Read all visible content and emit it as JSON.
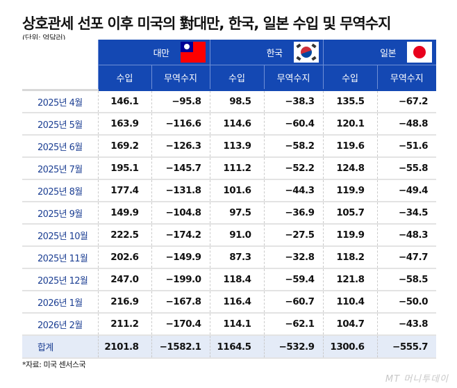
{
  "title": "상호관세 선포 이후 미국의 對대만, 한국, 일본 수입 및 무역수지",
  "unit": "(단위: 억달러)",
  "countries": [
    {
      "name": "대만",
      "flag": "taiwan-flag"
    },
    {
      "name": "한국",
      "flag": "korea-flag"
    },
    {
      "name": "일본",
      "flag": "japan-flag"
    }
  ],
  "subheaders": {
    "import": "수입",
    "balance": "무역수지"
  },
  "rows": [
    {
      "month": "2025년 4월",
      "values": [
        "146.1",
        "−95.8",
        "98.5",
        "−38.3",
        "135.5",
        "−67.2"
      ]
    },
    {
      "month": "2025년 5월",
      "values": [
        "163.9",
        "−116.6",
        "114.6",
        "−60.4",
        "120.1",
        "−48.8"
      ]
    },
    {
      "month": "2025년 6월",
      "values": [
        "169.2",
        "−126.3",
        "113.9",
        "−58.2",
        "119.6",
        "−51.6"
      ]
    },
    {
      "month": "2025년 7월",
      "values": [
        "195.1",
        "−145.7",
        "111.2",
        "−52.2",
        "124.8",
        "−55.8"
      ]
    },
    {
      "month": "2025년 8월",
      "values": [
        "177.4",
        "−131.8",
        "101.6",
        "−44.3",
        "119.9",
        "−49.4"
      ]
    },
    {
      "month": "2025년 9월",
      "values": [
        "149.9",
        "−104.8",
        "97.5",
        "−36.9",
        "105.7",
        "−34.5"
      ]
    },
    {
      "month": "2025년 10월",
      "values": [
        "222.5",
        "−174.2",
        "91.0",
        "−27.5",
        "119.9",
        "−48.3"
      ]
    },
    {
      "month": "2025년 11월",
      "values": [
        "202.6",
        "−149.9",
        "87.3",
        "−32.8",
        "118.2",
        "−47.7"
      ]
    },
    {
      "month": "2025년 12월",
      "values": [
        "247.0",
        "−199.0",
        "118.4",
        "−59.4",
        "121.8",
        "−58.5"
      ]
    },
    {
      "month": "2026년 1월",
      "values": [
        "216.9",
        "−167.8",
        "116.4",
        "−60.7",
        "110.4",
        "−50.0"
      ]
    },
    {
      "month": "2026년 2월",
      "values": [
        "211.2",
        "−170.4",
        "114.1",
        "−62.1",
        "104.7",
        "−43.8"
      ]
    }
  ],
  "total": {
    "month": "합계",
    "values": [
      "2101.8",
      "−1582.1",
      "1164.5",
      "−532.9",
      "1300.6",
      "−555.7"
    ]
  },
  "source": "*자료: 미국 센서스국",
  "logo": "MT 머니투데이",
  "colors": {
    "header_bg": "#1448b3",
    "month_text": "#1c3f93",
    "total_bg": "#e4ebf7"
  },
  "chart_data": {
    "type": "table",
    "title": "상호관세 선포 이후 미국의 對대만, 한국, 일본 수입 및 무역수지",
    "unit": "억달러",
    "categories": [
      "2025년 4월",
      "2025년 5월",
      "2025년 6월",
      "2025년 7월",
      "2025년 8월",
      "2025년 9월",
      "2025년 10월",
      "2025년 11월",
      "2025년 12월",
      "2026년 1월",
      "2026년 2월"
    ],
    "series": [
      {
        "name": "대만 수입",
        "values": [
          146.1,
          163.9,
          169.2,
          195.1,
          177.4,
          149.9,
          222.5,
          202.6,
          247.0,
          216.9,
          211.2
        ],
        "total": 2101.8
      },
      {
        "name": "대만 무역수지",
        "values": [
          -95.8,
          -116.6,
          -126.3,
          -145.7,
          -131.8,
          -104.8,
          -174.2,
          -149.9,
          -199.0,
          -167.8,
          -170.4
        ],
        "total": -1582.1
      },
      {
        "name": "한국 수입",
        "values": [
          98.5,
          114.6,
          113.9,
          111.2,
          101.6,
          97.5,
          91.0,
          87.3,
          118.4,
          116.4,
          114.1
        ],
        "total": 1164.5
      },
      {
        "name": "한국 무역수지",
        "values": [
          -38.3,
          -60.4,
          -58.2,
          -52.2,
          -44.3,
          -36.9,
          -27.5,
          -32.8,
          -59.4,
          -60.7,
          -62.1
        ],
        "total": -532.9
      },
      {
        "name": "일본 수입",
        "values": [
          135.5,
          120.1,
          119.6,
          124.8,
          119.9,
          105.7,
          119.9,
          118.2,
          121.8,
          110.4,
          104.7
        ],
        "total": 1300.6
      },
      {
        "name": "일본 무역수지",
        "values": [
          -67.2,
          -48.8,
          -51.6,
          -55.8,
          -49.4,
          -34.5,
          -48.3,
          -47.7,
          -58.5,
          -50.0,
          -43.8
        ],
        "total": -555.7
      }
    ],
    "source": "미국 센서스국"
  }
}
